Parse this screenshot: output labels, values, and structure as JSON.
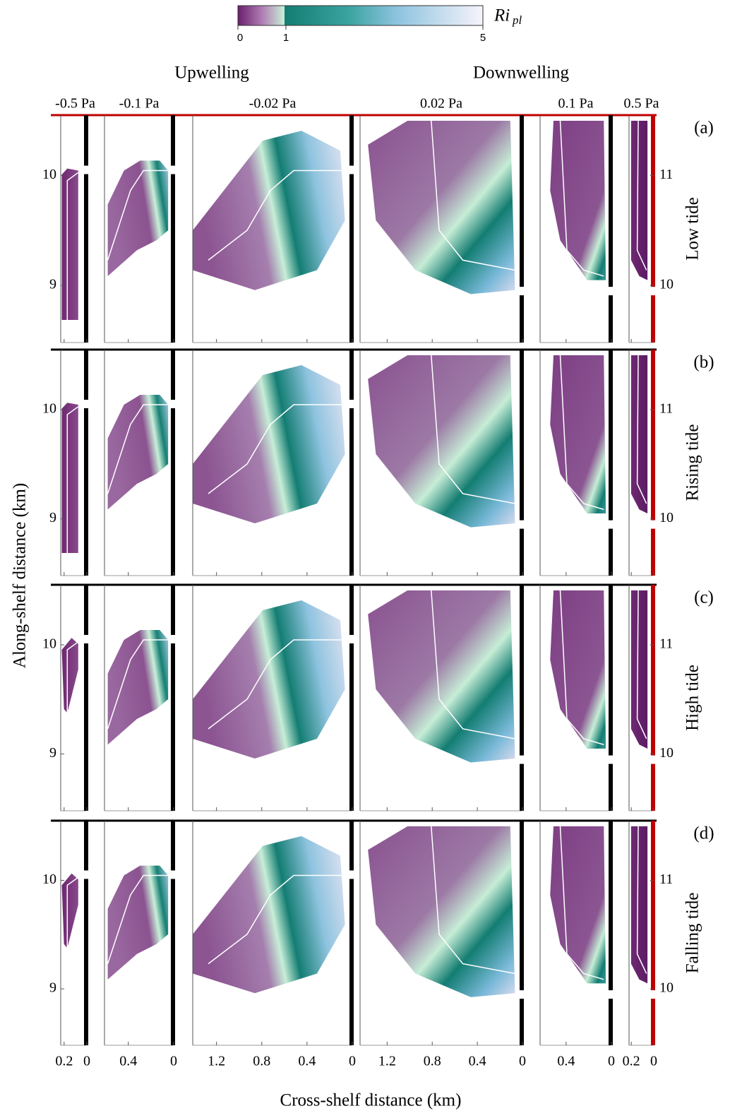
{
  "colorbar": {
    "label": "Ri",
    "label_sub": "pl",
    "ticks": [
      0,
      1,
      5
    ],
    "lim": [
      0,
      5
    ]
  },
  "group_titles": [
    "Upwelling",
    "Downwelling"
  ],
  "columns": [
    {
      "title": "-0.5 Pa",
      "xlim": [
        0.23,
        0
      ],
      "xticks": [
        0.2,
        0
      ]
    },
    {
      "title": "-0.1 Pa",
      "xlim": [
        0.61,
        0
      ],
      "xticks": [
        0.4,
        0
      ]
    },
    {
      "title": "-0.02 Pa",
      "xlim": [
        1.41,
        0
      ],
      "xticks": [
        1.2,
        0.8,
        0.4,
        0
      ]
    },
    {
      "title": "0.02 Pa",
      "xlim": [
        1.44,
        0
      ],
      "xticks": [
        1.2,
        0.8,
        0.4,
        0
      ]
    },
    {
      "title": "0.1 Pa",
      "xlim": [
        0.63,
        0
      ],
      "xticks": [
        0.4,
        0
      ]
    },
    {
      "title": "0.5 Pa",
      "xlim": [
        0.22,
        0
      ],
      "xticks": [
        0.2,
        0
      ]
    }
  ],
  "rows": [
    {
      "letter": "(a)",
      "label": "Low tide"
    },
    {
      "letter": "(b)",
      "label": "Rising tide"
    },
    {
      "letter": "(c)",
      "label": "High tide"
    },
    {
      "letter": "(d)",
      "label": "Falling tide"
    }
  ],
  "y_axis": {
    "label": "Along-shelf distance (km)",
    "ylim": [
      8.48,
      10.55
    ],
    "yticks": [
      10,
      9
    ],
    "y2lim": [
      9.48,
      11.55
    ],
    "y2ticks": [
      11,
      10
    ]
  },
  "x_axis": {
    "label": "Cross-shelf distance (km)"
  }
}
